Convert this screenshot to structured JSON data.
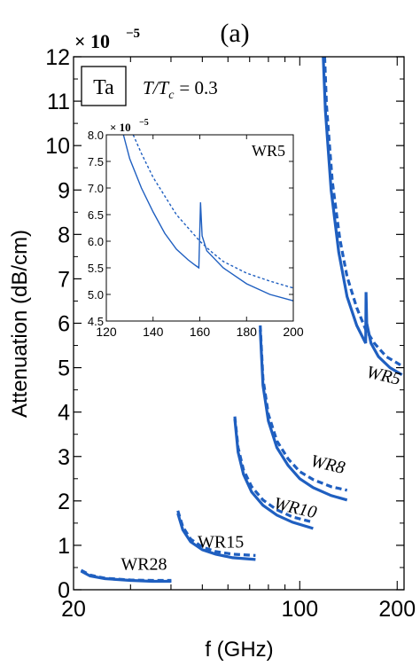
{
  "chart_data": [
    {
      "type": "line",
      "panel_label": "(a)",
      "xlabel": "f (GHz)",
      "ylabel": "Attenuation (dB/cm)",
      "x_scale": "log",
      "xlim": [
        20,
        210
      ],
      "ylim": [
        0,
        12
      ],
      "y_multiplier": "× 10",
      "y_multiplier_exponent": "−5",
      "x_ticks": [
        20,
        100,
        200
      ],
      "x_tick_labels": [
        "20",
        "100",
        "200"
      ],
      "y_ticks": [
        0,
        1,
        2,
        3,
        4,
        5,
        6,
        7,
        8,
        9,
        10,
        11,
        12
      ],
      "y_tick_labels": [
        "0",
        "1",
        "2",
        "3",
        "4",
        "5",
        "6",
        "7",
        "8",
        "9",
        "10",
        "11",
        "12"
      ],
      "annotations": {
        "material": "Ta",
        "temperature": "T/T",
        "temperature_sub": "c",
        "temperature_value": "= 0.3"
      },
      "series": [
        {
          "name": "WR28",
          "label": "WR28",
          "label_rotation": 0,
          "solid": [
            [
              21.1,
              0.42
            ],
            [
              22.5,
              0.31
            ],
            [
              25,
              0.25
            ],
            [
              30,
              0.21
            ],
            [
              35,
              0.19
            ],
            [
              40.1,
              0.19
            ]
          ],
          "dashed": [
            [
              21.1,
              0.44
            ],
            [
              22.5,
              0.33
            ],
            [
              25,
              0.26
            ],
            [
              30,
              0.22
            ],
            [
              35,
              0.21
            ],
            [
              40.1,
              0.21
            ]
          ]
        },
        {
          "name": "WR15",
          "label": "WR15",
          "label_rotation": 0,
          "solid": [
            [
              42.0,
              1.72
            ],
            [
              43.5,
              1.35
            ],
            [
              46,
              1.08
            ],
            [
              50,
              0.9
            ],
            [
              55,
              0.8
            ],
            [
              62,
              0.72
            ],
            [
              73,
              0.68
            ]
          ],
          "dashed": [
            [
              42.0,
              1.78
            ],
            [
              43.5,
              1.42
            ],
            [
              46,
              1.14
            ],
            [
              50,
              0.96
            ],
            [
              55,
              0.86
            ],
            [
              62,
              0.8
            ],
            [
              73,
              0.77
            ]
          ]
        },
        {
          "name": "WR10",
          "label": "WR10",
          "label_rotation": 13,
          "solid": [
            [
              63.0,
              3.85
            ],
            [
              64.5,
              3.1
            ],
            [
              67,
              2.6
            ],
            [
              71,
              2.2
            ],
            [
              77,
              1.9
            ],
            [
              85,
              1.68
            ],
            [
              95,
              1.52
            ],
            [
              110,
              1.38
            ]
          ],
          "dashed": [
            [
              63.0,
              3.9
            ],
            [
              64.5,
              3.2
            ],
            [
              67,
              2.7
            ],
            [
              71,
              2.32
            ],
            [
              77,
              2.02
            ],
            [
              85,
              1.8
            ],
            [
              95,
              1.64
            ],
            [
              110,
              1.52
            ]
          ]
        },
        {
          "name": "WR8",
          "label": "WR8",
          "label_rotation": 13,
          "solid": [
            [
              75.5,
              5.85
            ],
            [
              77,
              4.6
            ],
            [
              80,
              3.8
            ],
            [
              85,
              3.2
            ],
            [
              92,
              2.8
            ],
            [
              100,
              2.5
            ],
            [
              110,
              2.3
            ],
            [
              125,
              2.12
            ],
            [
              140,
              2.02
            ]
          ],
          "dashed": [
            [
              75.5,
              5.95
            ],
            [
              77,
              4.75
            ],
            [
              80,
              3.95
            ],
            [
              85,
              3.35
            ],
            [
              92,
              2.95
            ],
            [
              100,
              2.66
            ],
            [
              110,
              2.48
            ],
            [
              125,
              2.32
            ],
            [
              140,
              2.24
            ]
          ]
        },
        {
          "name": "WR5",
          "label": "WR5",
          "label_rotation": 13,
          "solid": [
            [
              118.2,
              12.0
            ],
            [
              120,
              10.8
            ],
            [
              125,
              9.0
            ],
            [
              132,
              7.6
            ],
            [
              140,
              6.6
            ],
            [
              150,
              5.95
            ],
            [
              158,
              5.62
            ],
            [
              159.8,
              5.55
            ],
            [
              160.2,
              6.7
            ],
            [
              161,
              6.0
            ],
            [
              166,
              5.55
            ],
            [
              175,
              5.25
            ],
            [
              190,
              5.0
            ],
            [
              207,
              4.84
            ]
          ],
          "dashed": [
            [
              119.4,
              12.0
            ],
            [
              121,
              10.9
            ],
            [
              126,
              9.2
            ],
            [
              133,
              7.9
            ],
            [
              140,
              7.05
            ],
            [
              150,
              6.35
            ],
            [
              160,
              5.85
            ],
            [
              170,
              5.55
            ],
            [
              185,
              5.25
            ],
            [
              207,
              5.04
            ]
          ]
        }
      ]
    },
    {
      "type": "line",
      "role": "inset",
      "title": "WR5",
      "x_scale": "linear",
      "xlim": [
        120,
        200
      ],
      "ylim": [
        4.5,
        8.0
      ],
      "y_multiplier": "× 10",
      "y_multiplier_exponent": "−5",
      "x_ticks": [
        120,
        140,
        160,
        180,
        200
      ],
      "x_tick_labels": [
        "120",
        "140",
        "160",
        "180",
        "200"
      ],
      "y_ticks": [
        4.5,
        5.0,
        5.5,
        6.0,
        6.5,
        7.0,
        7.5,
        8.0
      ],
      "y_tick_labels": [
        "4.5",
        "5.0",
        "5.5",
        "6.0",
        "6.5",
        "7.0",
        "7.5",
        "8.0"
      ],
      "series": [
        {
          "style": "solid",
          "points": [
            [
              127.3,
              8.0
            ],
            [
              130,
              7.55
            ],
            [
              135,
              7.0
            ],
            [
              140,
              6.55
            ],
            [
              145,
              6.15
            ],
            [
              150,
              5.85
            ],
            [
              155,
              5.65
            ],
            [
              158,
              5.55
            ],
            [
              159.6,
              5.5
            ],
            [
              160.3,
              6.73
            ],
            [
              161,
              6.1
            ],
            [
              163,
              5.82
            ],
            [
              170,
              5.5
            ],
            [
              180,
              5.2
            ],
            [
              190,
              5.0
            ],
            [
              200,
              4.88
            ]
          ]
        },
        {
          "style": "dashed",
          "points": [
            [
              131.5,
              8.0
            ],
            [
              135,
              7.65
            ],
            [
              140,
              7.2
            ],
            [
              145,
              6.85
            ],
            [
              150,
              6.5
            ],
            [
              155,
              6.25
            ],
            [
              160,
              6.0
            ],
            [
              165,
              5.8
            ],
            [
              170,
              5.62
            ],
            [
              180,
              5.4
            ],
            [
              190,
              5.25
            ],
            [
              200,
              5.12
            ]
          ]
        }
      ]
    }
  ],
  "colors": {
    "line": "#1f5fc0",
    "axis": "#000000",
    "background": "#ffffff"
  }
}
